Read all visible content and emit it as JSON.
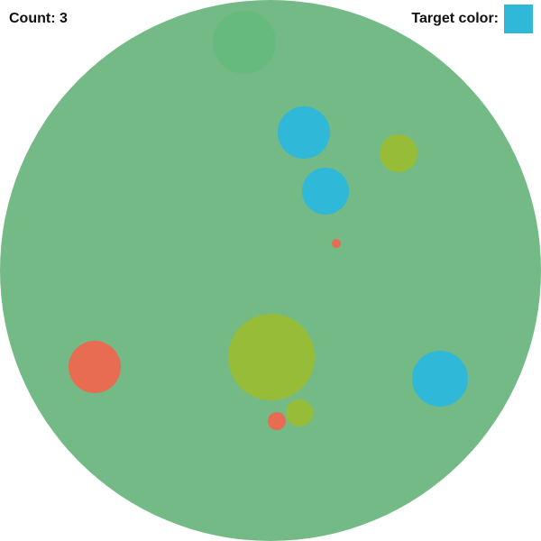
{
  "hud": {
    "count_label": "Count: 3",
    "target_label": "Target color:",
    "target_color": "#2fb8d8"
  },
  "colors": {
    "playfield": "#74ba86",
    "cyan": "#2fb8d8",
    "lime": "#97bd38",
    "red": "#e86c52",
    "green": "#66ba7e"
  },
  "balls": [
    {
      "id": "ball-green-top",
      "color": "green"
    },
    {
      "id": "ball-cyan-1",
      "color": "cyan"
    },
    {
      "id": "ball-lime-small-top",
      "color": "lime"
    },
    {
      "id": "ball-cyan-2",
      "color": "cyan"
    },
    {
      "id": "ball-red-tiny",
      "color": "red"
    },
    {
      "id": "ball-lime-large",
      "color": "lime"
    },
    {
      "id": "ball-red-left",
      "color": "red"
    },
    {
      "id": "ball-cyan-right",
      "color": "cyan"
    },
    {
      "id": "ball-lime-small-bottom",
      "color": "lime"
    },
    {
      "id": "ball-red-small-bottom",
      "color": "red"
    }
  ]
}
